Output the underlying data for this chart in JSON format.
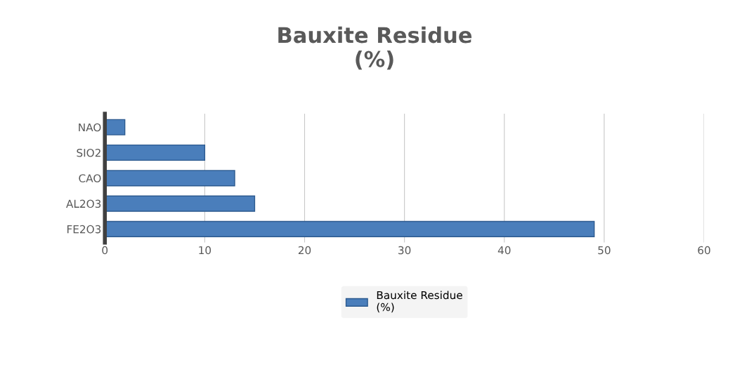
{
  "chart_data": {
    "type": "bar",
    "orientation": "horizontal",
    "title": "Bauxite Residue\n(%)",
    "categories": [
      "NAO",
      "SIO2",
      "CAO",
      "AL2O3",
      "FE2O3"
    ],
    "series": [
      {
        "name": "Bauxite Residue\n(%)",
        "color": "#4a7ebb",
        "values": [
          2,
          10,
          13,
          15,
          49
        ]
      }
    ],
    "xlim": [
      0,
      60
    ],
    "xticks": [
      0,
      10,
      20,
      30,
      40,
      50,
      60
    ],
    "grid": "x",
    "legend": "bottom"
  }
}
